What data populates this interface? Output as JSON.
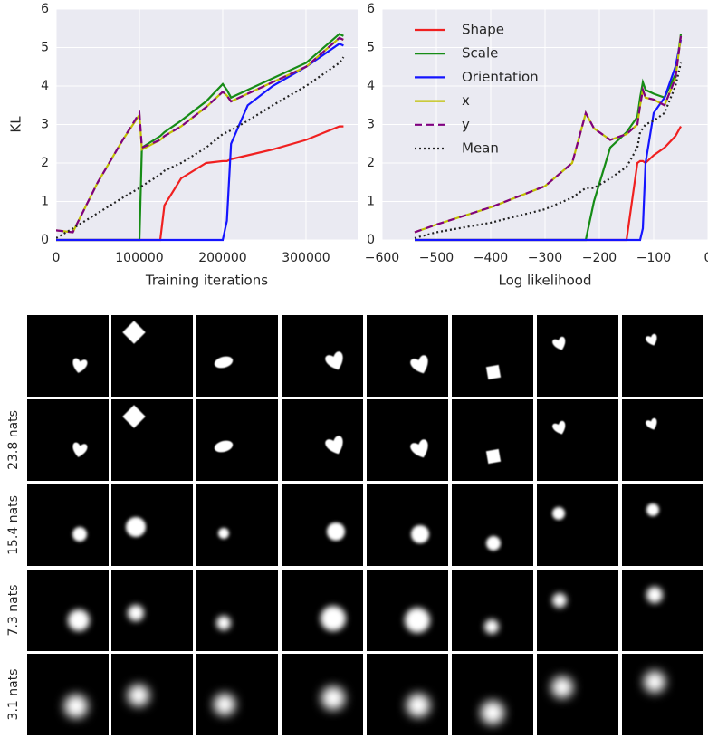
{
  "chart_data": [
    {
      "type": "line",
      "x_label": "Training iterations",
      "y_label": "KL",
      "x": [
        0,
        20000,
        50000,
        80000,
        100000,
        103000,
        125000,
        130000,
        150000,
        180000,
        200000,
        205000,
        210000,
        230000,
        260000,
        300000,
        340000,
        345000
      ],
      "series": [
        {
          "name": "Shape",
          "color": "#f02020",
          "dash": "solid",
          "values": [
            0,
            0,
            0,
            0,
            0,
            0,
            0,
            0.9,
            1.6,
            2.0,
            2.05,
            2.05,
            2.1,
            2.2,
            2.35,
            2.6,
            2.95,
            2.95
          ]
        },
        {
          "name": "Scale",
          "color": "#168c16",
          "dash": "solid",
          "values": [
            0,
            0,
            0,
            0,
            0,
            2.4,
            2.7,
            2.8,
            3.1,
            3.6,
            4.05,
            3.9,
            3.7,
            3.9,
            4.2,
            4.6,
            5.35,
            5.3
          ]
        },
        {
          "name": "Orientation",
          "color": "#1515ff",
          "dash": "solid",
          "values": [
            0,
            0,
            0,
            0,
            0,
            0,
            0,
            0,
            0,
            0,
            0,
            0.5,
            2.5,
            3.5,
            4.0,
            4.5,
            5.1,
            5.05
          ]
        },
        {
          "name": "x",
          "color": "#c0c000",
          "dash": "solid",
          "values": [
            0.25,
            0.2,
            1.5,
            2.6,
            3.25,
            2.35,
            2.6,
            2.7,
            2.95,
            3.45,
            3.85,
            3.75,
            3.6,
            3.8,
            4.1,
            4.5,
            5.25,
            5.2
          ]
        },
        {
          "name": "y",
          "color": "#800080",
          "dash": "dashed",
          "values": [
            0.25,
            0.2,
            1.5,
            2.6,
            3.3,
            2.4,
            2.6,
            2.7,
            2.95,
            3.45,
            3.85,
            3.75,
            3.6,
            3.8,
            4.1,
            4.5,
            5.25,
            5.2
          ]
        },
        {
          "name": "Mean",
          "color": "#222222",
          "dash": "dotted",
          "values": [
            0.05,
            0.3,
            0.7,
            1.1,
            1.35,
            1.4,
            1.7,
            1.8,
            2.0,
            2.4,
            2.75,
            2.8,
            2.85,
            3.1,
            3.5,
            4.0,
            4.6,
            4.75
          ]
        }
      ],
      "xlim": [
        0,
        362000
      ],
      "xticks": [
        0,
        100000,
        200000,
        300000
      ],
      "ylim": [
        0,
        6
      ],
      "yticks": [
        0,
        1,
        2,
        3,
        4,
        5,
        6
      ],
      "grid": true
    },
    {
      "type": "line",
      "x_label": "Log likelihood",
      "legend": "upper left",
      "x": [
        -540,
        -500,
        -400,
        -300,
        -250,
        -225,
        -210,
        -180,
        -150,
        -130,
        -125,
        -120,
        -115,
        -100,
        -80,
        -60,
        -50
      ],
      "series": [
        {
          "name": "Shape",
          "color": "#f02020",
          "dash": "solid",
          "values": [
            0,
            0,
            0,
            0,
            0,
            0,
            0,
            0,
            0,
            2.0,
            2.05,
            2.05,
            2.0,
            2.2,
            2.4,
            2.7,
            2.95
          ]
        },
        {
          "name": "Scale",
          "color": "#168c16",
          "dash": "solid",
          "values": [
            0,
            0,
            0,
            0,
            0,
            0,
            1.0,
            2.4,
            2.8,
            3.2,
            3.7,
            4.1,
            3.9,
            3.8,
            3.7,
            4.3,
            5.35
          ]
        },
        {
          "name": "Orientation",
          "color": "#1515ff",
          "dash": "solid",
          "values": [
            0,
            0,
            0,
            0,
            0,
            0,
            0,
            0,
            0,
            0,
            0,
            0.3,
            2.0,
            3.3,
            3.7,
            4.5,
            5.2
          ]
        },
        {
          "name": "x",
          "color": "#c0c000",
          "dash": "solid",
          "values": [
            0.2,
            0.4,
            0.85,
            1.4,
            2.0,
            3.3,
            2.9,
            2.6,
            2.75,
            3.0,
            3.5,
            3.9,
            3.7,
            3.65,
            3.5,
            4.2,
            5.3
          ]
        },
        {
          "name": "y",
          "color": "#800080",
          "dash": "dashed",
          "values": [
            0.2,
            0.4,
            0.85,
            1.4,
            2.0,
            3.3,
            2.9,
            2.6,
            2.75,
            3.0,
            3.5,
            3.9,
            3.7,
            3.65,
            3.5,
            4.2,
            5.3
          ]
        },
        {
          "name": "Mean",
          "color": "#222222",
          "dash": "dotted",
          "values": [
            0.05,
            0.2,
            0.45,
            0.8,
            1.1,
            1.35,
            1.35,
            1.6,
            1.9,
            2.4,
            2.8,
            2.9,
            3.0,
            3.1,
            3.3,
            4.0,
            4.6
          ]
        }
      ],
      "xlim": [
        -600,
        0
      ],
      "xticks": [
        {
          "value": -600,
          "label": "−600"
        },
        {
          "value": -500,
          "label": "−500"
        },
        {
          "value": -400,
          "label": "−400"
        },
        {
          "value": -300,
          "label": "−300"
        },
        {
          "value": -200,
          "label": "−200"
        },
        {
          "value": -100,
          "label": "−100"
        },
        0
      ],
      "ylim": [
        0,
        6
      ],
      "yticks": [
        0,
        1,
        2,
        3,
        4,
        5,
        6
      ],
      "grid": true
    }
  ],
  "image_grid": {
    "row_labels": [
      "23.8 nats",
      "15.4 nats",
      "7.3 nats",
      "3.1 nats"
    ]
  }
}
